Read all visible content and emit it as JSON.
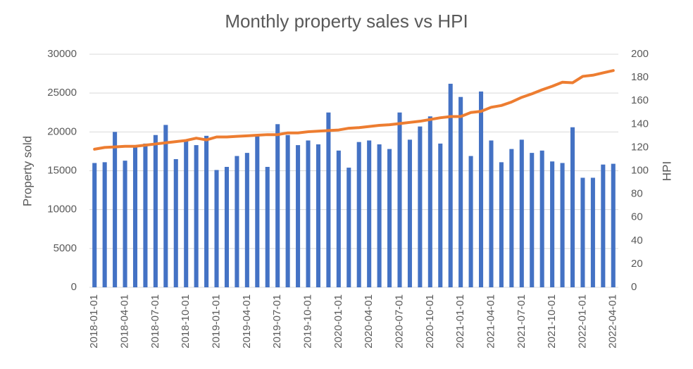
{
  "chart_data": {
    "type": "bar_line",
    "title": "Monthly property sales vs HPI",
    "y_label": "Property sold",
    "y2_label": "HPI",
    "categories": [
      "2018-01-01",
      null,
      null,
      "2018-04-01",
      null,
      null,
      "2018-07-01",
      null,
      null,
      "2018-10-01",
      null,
      null,
      "2019-01-01",
      null,
      null,
      "2019-04-01",
      null,
      null,
      "2019-07-01",
      null,
      null,
      "2019-10-01",
      null,
      null,
      "2020-01-01",
      null,
      null,
      "2020-04-01",
      null,
      null,
      "2020-07-01",
      null,
      null,
      "2020-10-01",
      null,
      null,
      "2021-01-01",
      null,
      null,
      "2021-04-01",
      null,
      null,
      "2021-07-01",
      null,
      null,
      "2021-10-01",
      null,
      null,
      "2022-01-01",
      null,
      null,
      "2022-04-01"
    ],
    "series": [
      {
        "name": "Property sold",
        "type": "bar",
        "color": "#4472c4",
        "values": [
          16000,
          16100,
          20000,
          16300,
          18000,
          18500,
          19600,
          20900,
          16500,
          18900,
          18300,
          19500,
          15100,
          15500,
          16900,
          17300,
          19500,
          15500,
          21000,
          19600,
          18300,
          18900,
          18400,
          22500,
          17600,
          15400,
          18700,
          18900,
          18400,
          17800,
          22500,
          19000,
          20700,
          22000,
          18500,
          26200,
          24500,
          16900,
          25200,
          18900,
          16100,
          17800,
          19000,
          17300,
          17600,
          16200,
          16000,
          20600,
          14100,
          14100,
          15800,
          15900
        ]
      },
      {
        "name": "HPI",
        "type": "line",
        "axis": "y2",
        "color": "#ed7d31",
        "values": [
          118.5,
          120,
          120.5,
          121,
          121,
          122,
          123,
          124,
          125,
          126,
          128,
          126.5,
          129,
          129,
          129.5,
          130,
          130.5,
          131,
          131,
          132.5,
          132.5,
          133.5,
          134,
          134.5,
          135,
          136.5,
          137,
          138,
          139,
          139.5,
          140.5,
          141.5,
          142.5,
          144,
          145.5,
          146.5,
          146.5,
          150,
          151,
          154.5,
          156,
          159,
          163,
          166,
          169.5,
          172.5,
          176,
          175.5,
          181,
          182,
          184,
          186
        ]
      }
    ],
    "ylim": [
      0,
      30000
    ],
    "yticks": [
      0,
      5000,
      10000,
      15000,
      20000,
      25000,
      30000
    ],
    "y2lim": [
      0,
      200
    ],
    "y2ticks": [
      0,
      20,
      40,
      60,
      80,
      100,
      120,
      140,
      160,
      180,
      200
    ],
    "grid": true
  }
}
